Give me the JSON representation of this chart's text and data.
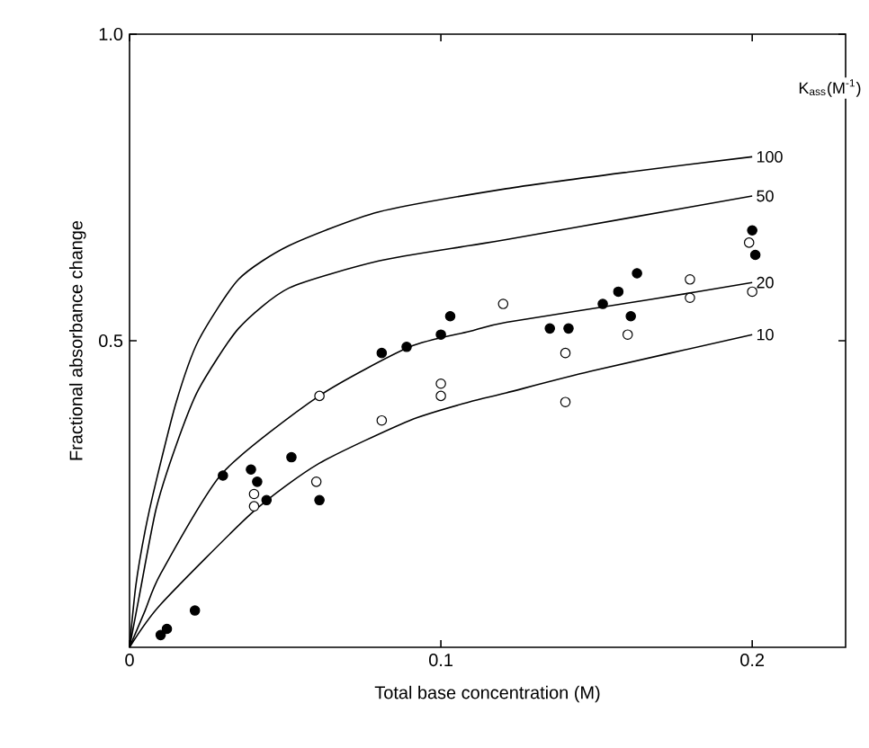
{
  "chart_data": {
    "type": "scatter",
    "xlabel": "Total base concentration (M)",
    "ylabel": "Fractional absorbance change",
    "legend_title": "K$_{ass}$(M$^{-1}$)",
    "xlim": [
      0,
      0.23
    ],
    "ylim": [
      0,
      1.0
    ],
    "xticks": [
      {
        "value": 0,
        "label": "0"
      },
      {
        "value": 0.1,
        "label": "0.1"
      },
      {
        "value": 0.2,
        "label": "0.2"
      }
    ],
    "yticks": [
      {
        "value": 0.5,
        "label": "0.5"
      },
      {
        "value": 1.0,
        "label": "1.0"
      }
    ],
    "grid": false,
    "legend": false,
    "line_style": "solid",
    "series": [
      {
        "name": "100",
        "type": "line",
        "marker": "none",
        "color": "#000000",
        "x": [
          0,
          0.002,
          0.005,
          0.0085,
          0.015,
          0.0221,
          0.035,
          0.0512,
          0.08,
          0.121,
          0.16,
          0.2
        ],
        "values": [
          0,
          0.1,
          0.19,
          0.27,
          0.4,
          0.5,
          0.6,
          0.655,
          0.71,
          0.748,
          0.775,
          0.8
        ]
      },
      {
        "name": "50",
        "type": "line",
        "marker": "none",
        "color": "#000000",
        "x": [
          0,
          0.003,
          0.0085,
          0.015,
          0.0221,
          0.035,
          0.0512,
          0.08,
          0.109,
          0.121,
          0.16,
          0.2
        ],
        "values": [
          0,
          0.08,
          0.225,
          0.33,
          0.42,
          0.52,
          0.586,
          0.63,
          0.655,
          0.665,
          0.7,
          0.736
        ]
      },
      {
        "name": "20",
        "type": "line",
        "marker": "none",
        "color": "#000000",
        "x": [
          0,
          0.005,
          0.01,
          0.0298,
          0.0609,
          0.09,
          0.109,
          0.121,
          0.167,
          0.2
        ],
        "values": [
          0,
          0.06,
          0.12,
          0.284,
          0.41,
          0.49,
          0.515,
          0.53,
          0.567,
          0.595
        ]
      },
      {
        "name": "10",
        "type": "line",
        "marker": "none",
        "color": "#000000",
        "x": [
          0,
          0.01,
          0.0395,
          0.0609,
          0.09,
          0.109,
          0.121,
          0.148,
          0.2
        ],
        "values": [
          0,
          0.07,
          0.22,
          0.3,
          0.37,
          0.4,
          0.415,
          0.45,
          0.51
        ]
      },
      {
        "marker": "circle",
        "color": "#000000",
        "x": [
          0.01,
          0.012,
          0.021,
          0.03,
          0.039,
          0.041,
          0.044,
          0.052,
          0.061,
          0.081,
          0.089,
          0.1,
          0.103,
          0.135,
          0.141,
          0.152,
          0.157,
          0.161,
          0.163,
          0.2,
          0.201
        ],
        "values": [
          0.02,
          0.03,
          0.06,
          0.28,
          0.29,
          0.27,
          0.24,
          0.31,
          0.24,
          0.48,
          0.49,
          0.51,
          0.54,
          0.52,
          0.52,
          0.56,
          0.58,
          0.54,
          0.61,
          0.68,
          0.64
        ]
      },
      {
        "marker": "circle",
        "color": "#ffffff",
        "x": [
          0.04,
          0.04,
          0.06,
          0.061,
          0.081,
          0.1,
          0.1,
          0.12,
          0.14,
          0.14,
          0.16,
          0.18,
          0.18,
          0.199,
          0.2
        ],
        "values": [
          0.25,
          0.23,
          0.27,
          0.41,
          0.37,
          0.43,
          0.41,
          0.56,
          0.48,
          0.4,
          0.51,
          0.6,
          0.57,
          0.66,
          0.58
        ]
      }
    ]
  }
}
